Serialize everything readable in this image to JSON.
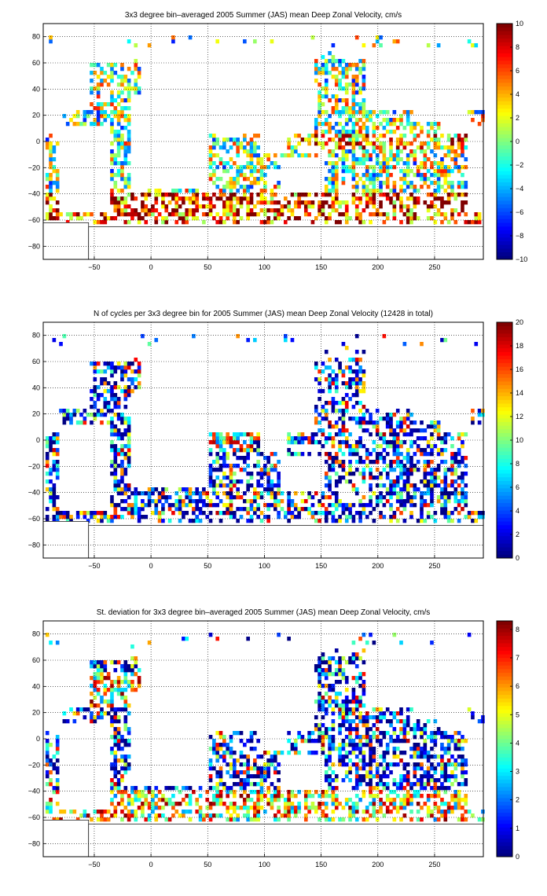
{
  "chart_data": [
    {
      "type": "heatmap",
      "title": "3x3 degree bin–averaged 2005 Summer (JAS) mean Deep Zonal Velocity, cm/s",
      "xlabel": "",
      "ylabel": "",
      "xlim": [
        -95,
        293
      ],
      "ylim": [
        -90,
        90
      ],
      "x_ticks": [
        -50,
        0,
        50,
        100,
        150,
        200,
        250
      ],
      "y_ticks": [
        80,
        60,
        40,
        20,
        0,
        -20,
        -40,
        -60,
        -80
      ],
      "grid": true,
      "colorbar": {
        "min": -10,
        "max": 10,
        "ticks": [
          10,
          8,
          6,
          4,
          2,
          0,
          -2,
          -4,
          -6,
          -8,
          -10
        ],
        "colormap": "jet"
      },
      "bin_size_deg": 3
    },
    {
      "type": "heatmap",
      "title": "N of cycles per 3x3 degree bin for 2005 Summer (JAS) mean Deep Zonal Velocity (12428 in total)",
      "xlabel": "",
      "ylabel": "",
      "xlim": [
        -95,
        293
      ],
      "ylim": [
        -90,
        90
      ],
      "x_ticks": [
        -50,
        0,
        50,
        100,
        150,
        200,
        250
      ],
      "y_ticks": [
        80,
        60,
        40,
        20,
        0,
        -20,
        -40,
        -60,
        -80
      ],
      "grid": true,
      "colorbar": {
        "min": 0,
        "max": 20,
        "ticks": [
          20,
          18,
          16,
          14,
          12,
          10,
          8,
          6,
          4,
          2,
          0
        ],
        "colormap": "jet"
      },
      "bin_size_deg": 3
    },
    {
      "type": "heatmap",
      "title": "St. deviation for 3x3 degree bin–averaged 2005 Summer (JAS) mean Deep Zonal Velocity, cm/s",
      "xlabel": "",
      "ylabel": "",
      "xlim": [
        -95,
        293
      ],
      "ylim": [
        -90,
        90
      ],
      "x_ticks": [
        -50,
        0,
        50,
        100,
        150,
        200,
        250
      ],
      "y_ticks": [
        80,
        60,
        40,
        20,
        0,
        -20,
        -40,
        -60,
        -80
      ],
      "grid": true,
      "colorbar": {
        "min": 0,
        "max": 8.3,
        "ticks": [
          8,
          7,
          6,
          5,
          4,
          3,
          2,
          1,
          0
        ],
        "colormap": "jet"
      },
      "bin_size_deg": 3
    }
  ]
}
